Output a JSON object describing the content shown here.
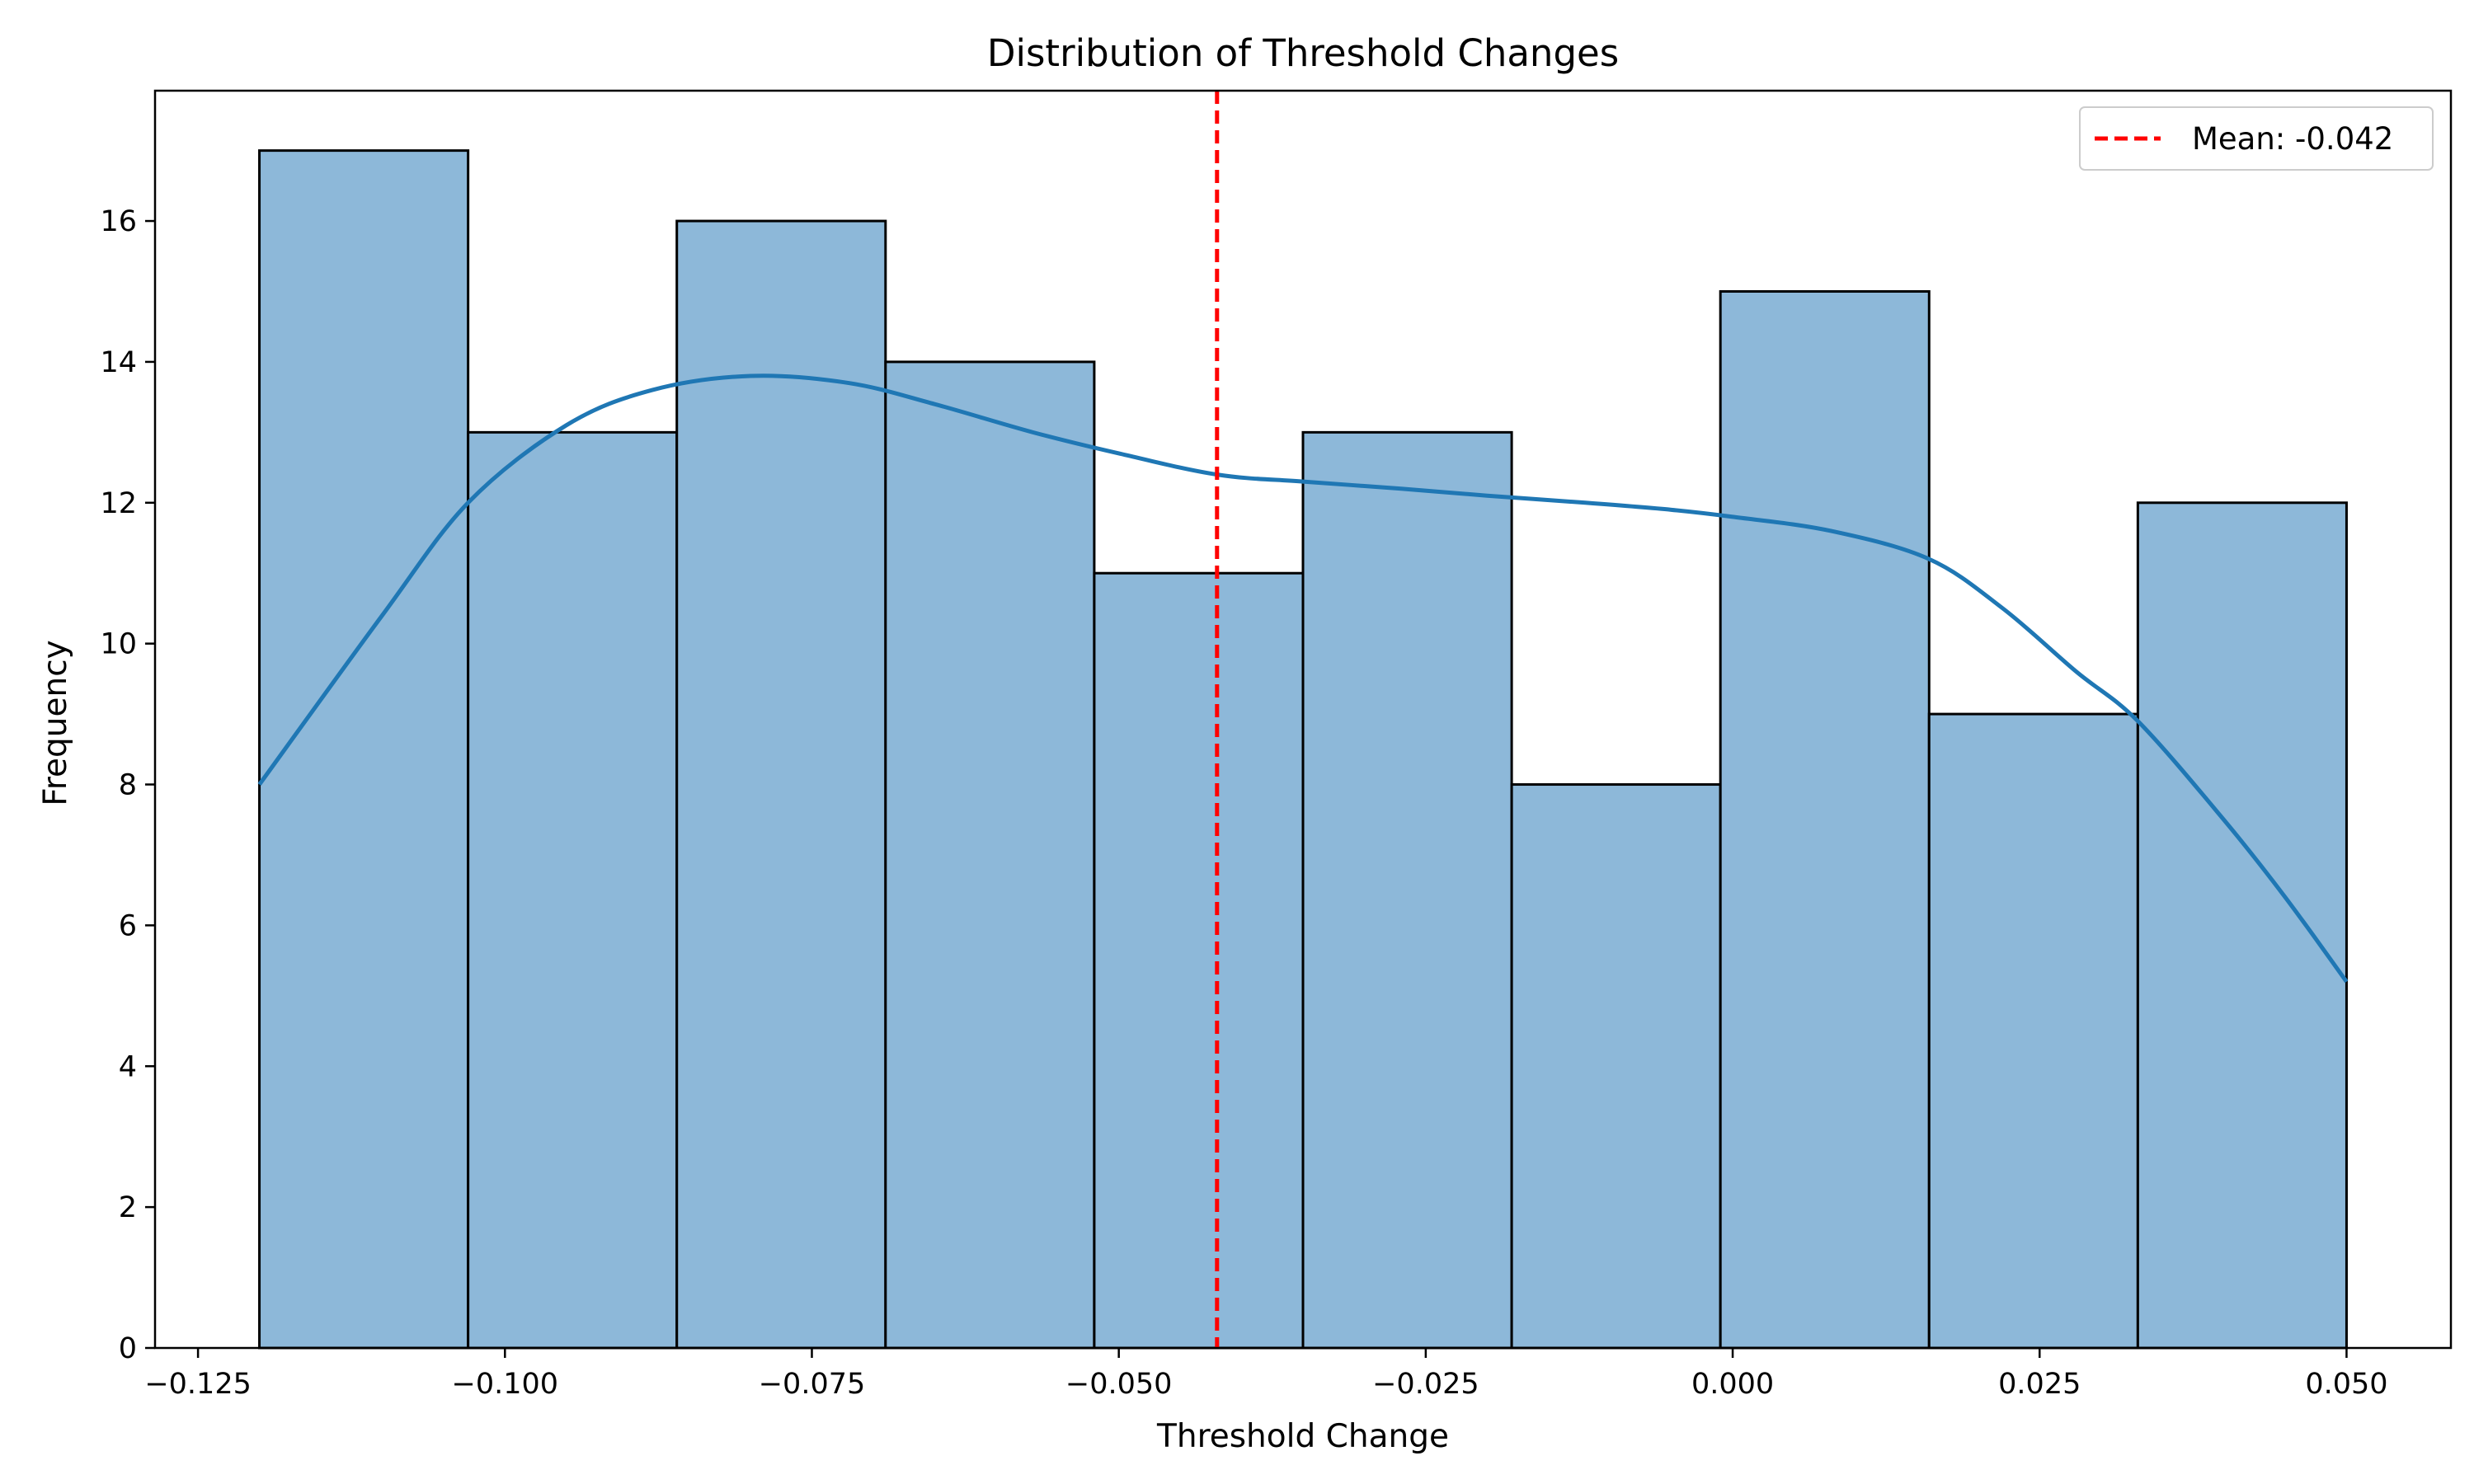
{
  "chart_data": {
    "type": "bar",
    "title": "Distribution of Threshold Changes",
    "xlabel": "Threshold Change",
    "ylabel": "Frequency",
    "xlim": [
      -0.1285,
      0.0585
    ],
    "ylim": [
      0,
      17.85
    ],
    "x_ticks": [
      -0.125,
      -0.1,
      -0.075,
      -0.05,
      -0.025,
      0.0,
      0.025,
      0.05
    ],
    "x_tick_labels": [
      "−0.125",
      "−0.100",
      "−0.075",
      "−0.050",
      "−0.025",
      "0.000",
      "0.025",
      "0.050"
    ],
    "y_ticks": [
      0,
      2,
      4,
      6,
      8,
      10,
      12,
      14,
      16
    ],
    "y_tick_labels": [
      "0",
      "2",
      "4",
      "6",
      "8",
      "10",
      "12",
      "14",
      "16"
    ],
    "bins": [
      {
        "start": -0.12,
        "end": -0.103,
        "count": 17
      },
      {
        "start": -0.103,
        "end": -0.086,
        "count": 13
      },
      {
        "start": -0.086,
        "end": -0.069,
        "count": 16
      },
      {
        "start": -0.069,
        "end": -0.052,
        "count": 14
      },
      {
        "start": -0.052,
        "end": -0.035,
        "count": 11
      },
      {
        "start": -0.035,
        "end": -0.018,
        "count": 13
      },
      {
        "start": -0.018,
        "end": -0.001,
        "count": 8
      },
      {
        "start": -0.001,
        "end": 0.016,
        "count": 15
      },
      {
        "start": 0.016,
        "end": 0.033,
        "count": 9
      },
      {
        "start": 0.033,
        "end": 0.05,
        "count": 12
      }
    ],
    "kde": {
      "x": [
        -0.12,
        -0.11,
        -0.103,
        -0.095,
        -0.088,
        -0.08,
        -0.072,
        -0.065,
        -0.057,
        -0.05,
        -0.042,
        -0.035,
        -0.027,
        -0.02,
        -0.012,
        -0.005,
        0.0,
        0.008,
        0.016,
        0.022,
        0.028,
        0.033,
        0.04,
        0.045,
        0.05
      ],
      "y": [
        8.0,
        10.4,
        12.0,
        13.1,
        13.6,
        13.8,
        13.7,
        13.4,
        13.0,
        12.7,
        12.4,
        12.3,
        12.2,
        12.1,
        12.0,
        11.9,
        11.8,
        11.6,
        11.2,
        10.5,
        9.6,
        8.9,
        7.5,
        6.4,
        5.2
      ]
    },
    "mean_line": {
      "x": -0.042,
      "label": "Mean: -0.042"
    },
    "legend_position": "top-right",
    "grid": false,
    "colors": {
      "bar_fill": "#8db8d9",
      "bar_edge": "#000000",
      "kde_line": "#1f77b4",
      "mean_line": "#ff0000",
      "axes": "#000000"
    }
  }
}
